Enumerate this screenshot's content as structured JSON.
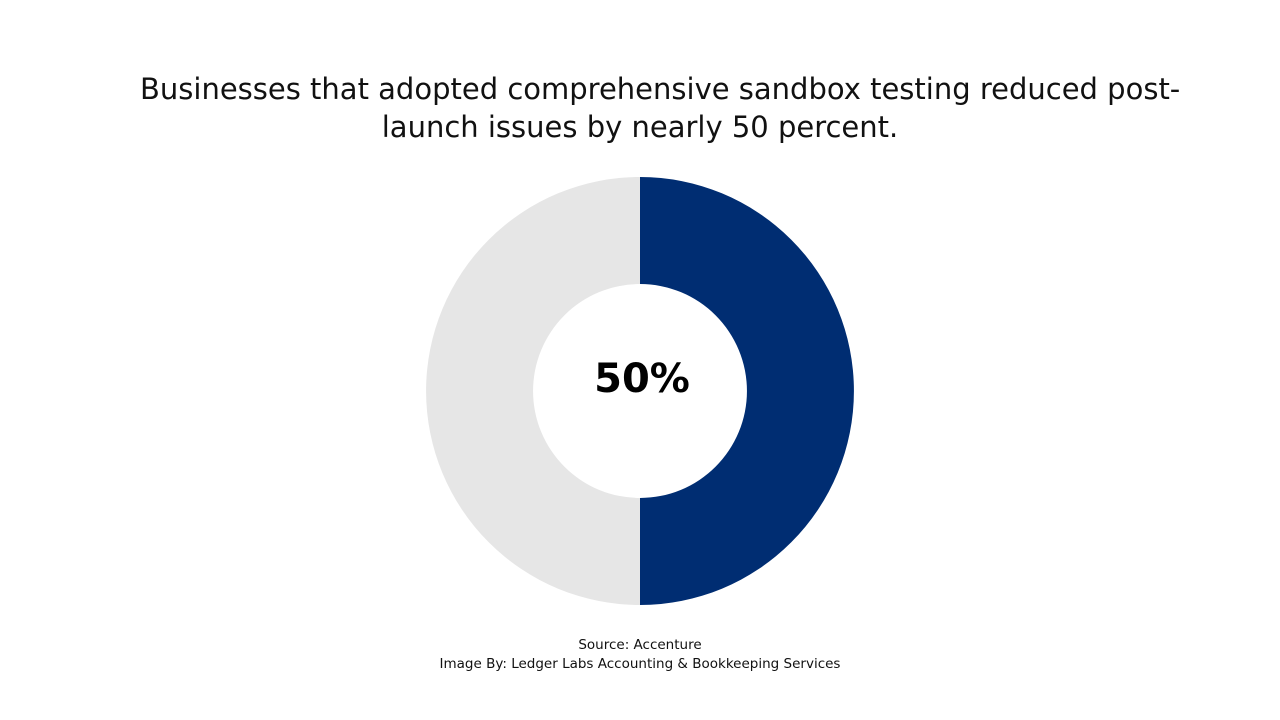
{
  "title_lines": [
    "Businesses that adopted comprehensive sandbox testing reduced post-",
    "launch issues by nearly 50 percent."
  ],
  "chart_data": {
    "type": "pie",
    "style": "donut",
    "slices": [
      {
        "value": 50,
        "color": "#002D72"
      },
      {
        "value": 50,
        "color": "#E6E6E6"
      }
    ],
    "center_label": "50%"
  },
  "footer": {
    "source": "Source: Accenture",
    "credit": "Image By: Ledger Labs Accounting & Bookkeeping Services"
  }
}
